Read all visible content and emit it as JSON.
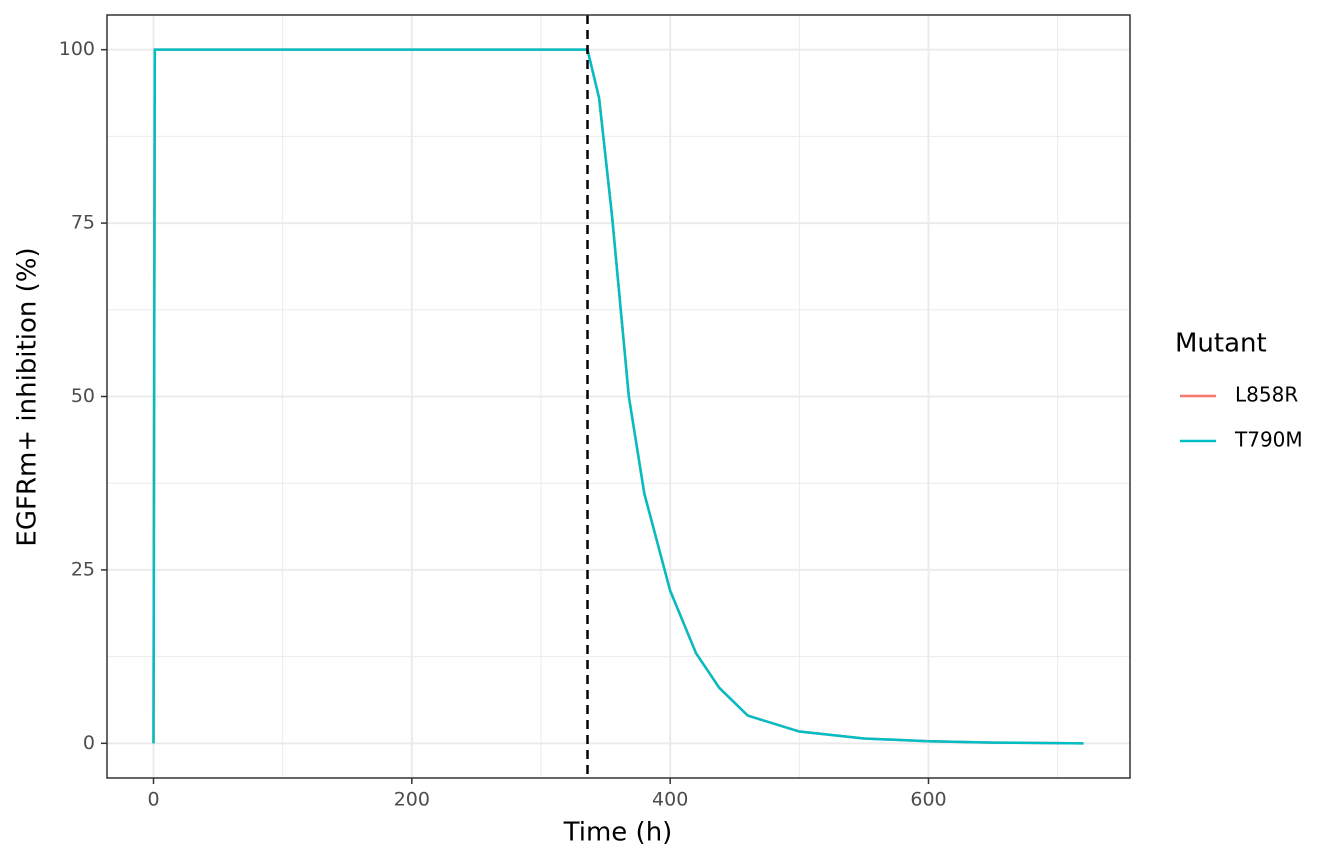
{
  "chart_data": {
    "type": "line",
    "x_label": "Time (h)",
    "y_label": "EGFRm+ inhibition (%)",
    "legend_title": "Mutant",
    "legend": "right",
    "grid": true,
    "x": [
      0,
      1,
      10,
      50,
      100,
      200,
      300,
      336,
      345,
      355,
      361,
      368,
      380,
      400,
      420,
      438,
      460,
      500,
      550,
      600,
      650,
      720
    ],
    "series": [
      {
        "name": "L858R",
        "color": "#F8766D",
        "values": [
          0,
          100,
          100,
          100,
          100,
          100,
          100,
          100,
          93,
          76,
          64,
          50,
          36,
          22,
          13,
          8,
          4,
          1.7,
          0.7,
          0.3,
          0.1,
          0
        ]
      },
      {
        "name": "T790M",
        "color": "#00BFC4",
        "values": [
          0,
          100,
          100,
          100,
          100,
          100,
          100,
          100,
          93,
          76,
          64,
          50,
          36,
          22,
          13,
          8,
          4,
          1.7,
          0.7,
          0.3,
          0.1,
          0
        ]
      }
    ],
    "vline": 336,
    "xlim": [
      -36,
      756
    ],
    "xticks": [
      0,
      200,
      400,
      600
    ],
    "x_minor_ticks": [
      100,
      300,
      500,
      700
    ],
    "ylim": [
      -5,
      105
    ],
    "yticks": [
      0,
      25,
      50,
      75,
      100
    ],
    "y_minor_ticks": [
      12.5,
      37.5,
      62.5,
      87.5
    ]
  }
}
